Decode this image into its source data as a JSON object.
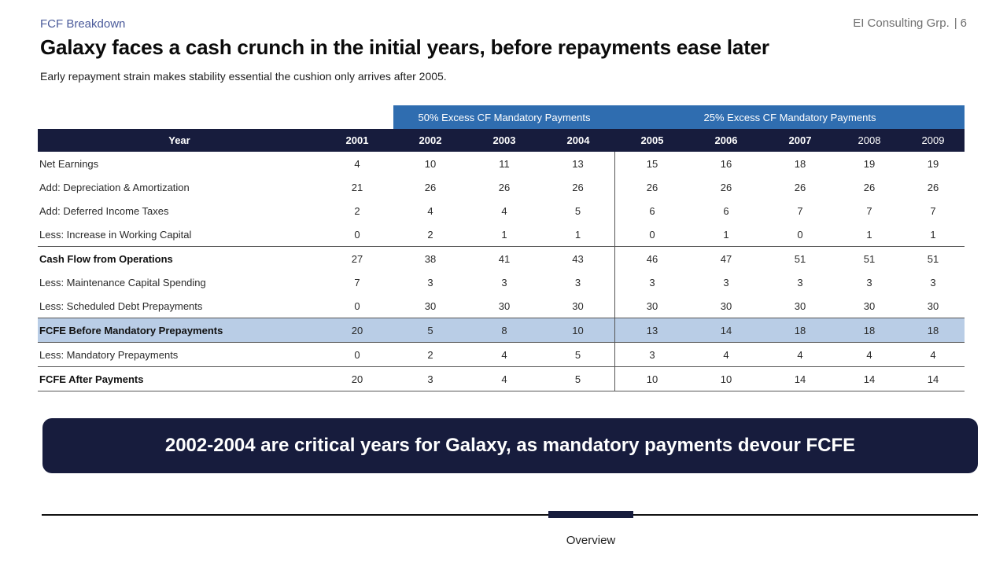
{
  "header": {
    "kicker": "FCF Breakdown",
    "company": "EI Consulting Grp.",
    "page_number": "6",
    "title": "Galaxy faces a cash crunch in the initial years, before repayments ease later",
    "subtitle": "Early repayment strain makes stability essential the cushion only arrives after 2005."
  },
  "table": {
    "groups": [
      "50% Excess CF Mandatory Payments",
      "25% Excess CF Mandatory Payments"
    ],
    "year_label": "Year",
    "years": [
      "2001",
      "2002",
      "2003",
      "2004",
      "2005",
      "2006",
      "2007",
      "2008",
      "2009"
    ],
    "rows": [
      {
        "label": "Net Earnings",
        "values": [
          "4",
          "10",
          "11",
          "13",
          "15",
          "16",
          "18",
          "19",
          "19"
        ]
      },
      {
        "label": "Add: Depreciation & Amortization",
        "values": [
          "21",
          "26",
          "26",
          "26",
          "26",
          "26",
          "26",
          "26",
          "26"
        ]
      },
      {
        "label": "Add: Deferred Income Taxes",
        "values": [
          "2",
          "4",
          "4",
          "5",
          "6",
          "6",
          "7",
          "7",
          "7"
        ]
      },
      {
        "label": "Less: Increase in Working Capital",
        "values": [
          "0",
          "2",
          "1",
          "1",
          "0",
          "1",
          "0",
          "1",
          "1"
        ]
      },
      {
        "label": "Cash Flow from Operations",
        "values": [
          "27",
          "38",
          "41",
          "43",
          "46",
          "47",
          "51",
          "51",
          "51"
        ]
      },
      {
        "label": "Less: Maintenance Capital Spending",
        "values": [
          "7",
          "3",
          "3",
          "3",
          "3",
          "3",
          "3",
          "3",
          "3"
        ]
      },
      {
        "label": "Less: Scheduled Debt Prepayments",
        "values": [
          "0",
          "30",
          "30",
          "30",
          "30",
          "30",
          "30",
          "30",
          "30"
        ]
      },
      {
        "label": "FCFE Before Mandatory Prepayments",
        "values": [
          "20",
          "5",
          "8",
          "10",
          "13",
          "14",
          "18",
          "18",
          "18"
        ]
      },
      {
        "label": "Less: Mandatory Prepayments",
        "values": [
          "0",
          "2",
          "4",
          "5",
          "3",
          "4",
          "4",
          "4",
          "4"
        ]
      },
      {
        "label": "FCFE After Payments",
        "values": [
          "20",
          "3",
          "4",
          "5",
          "10",
          "10",
          "14",
          "14",
          "14"
        ]
      }
    ]
  },
  "callout": "2002-2004 are critical years for Galaxy, as mandatory payments devour FCFE",
  "footer": {
    "label": "Overview"
  },
  "colors": {
    "navy": "#171c3d",
    "blue": "#2f6db0",
    "highlight": "#b9cde6",
    "kicker": "#4a5a9a"
  }
}
